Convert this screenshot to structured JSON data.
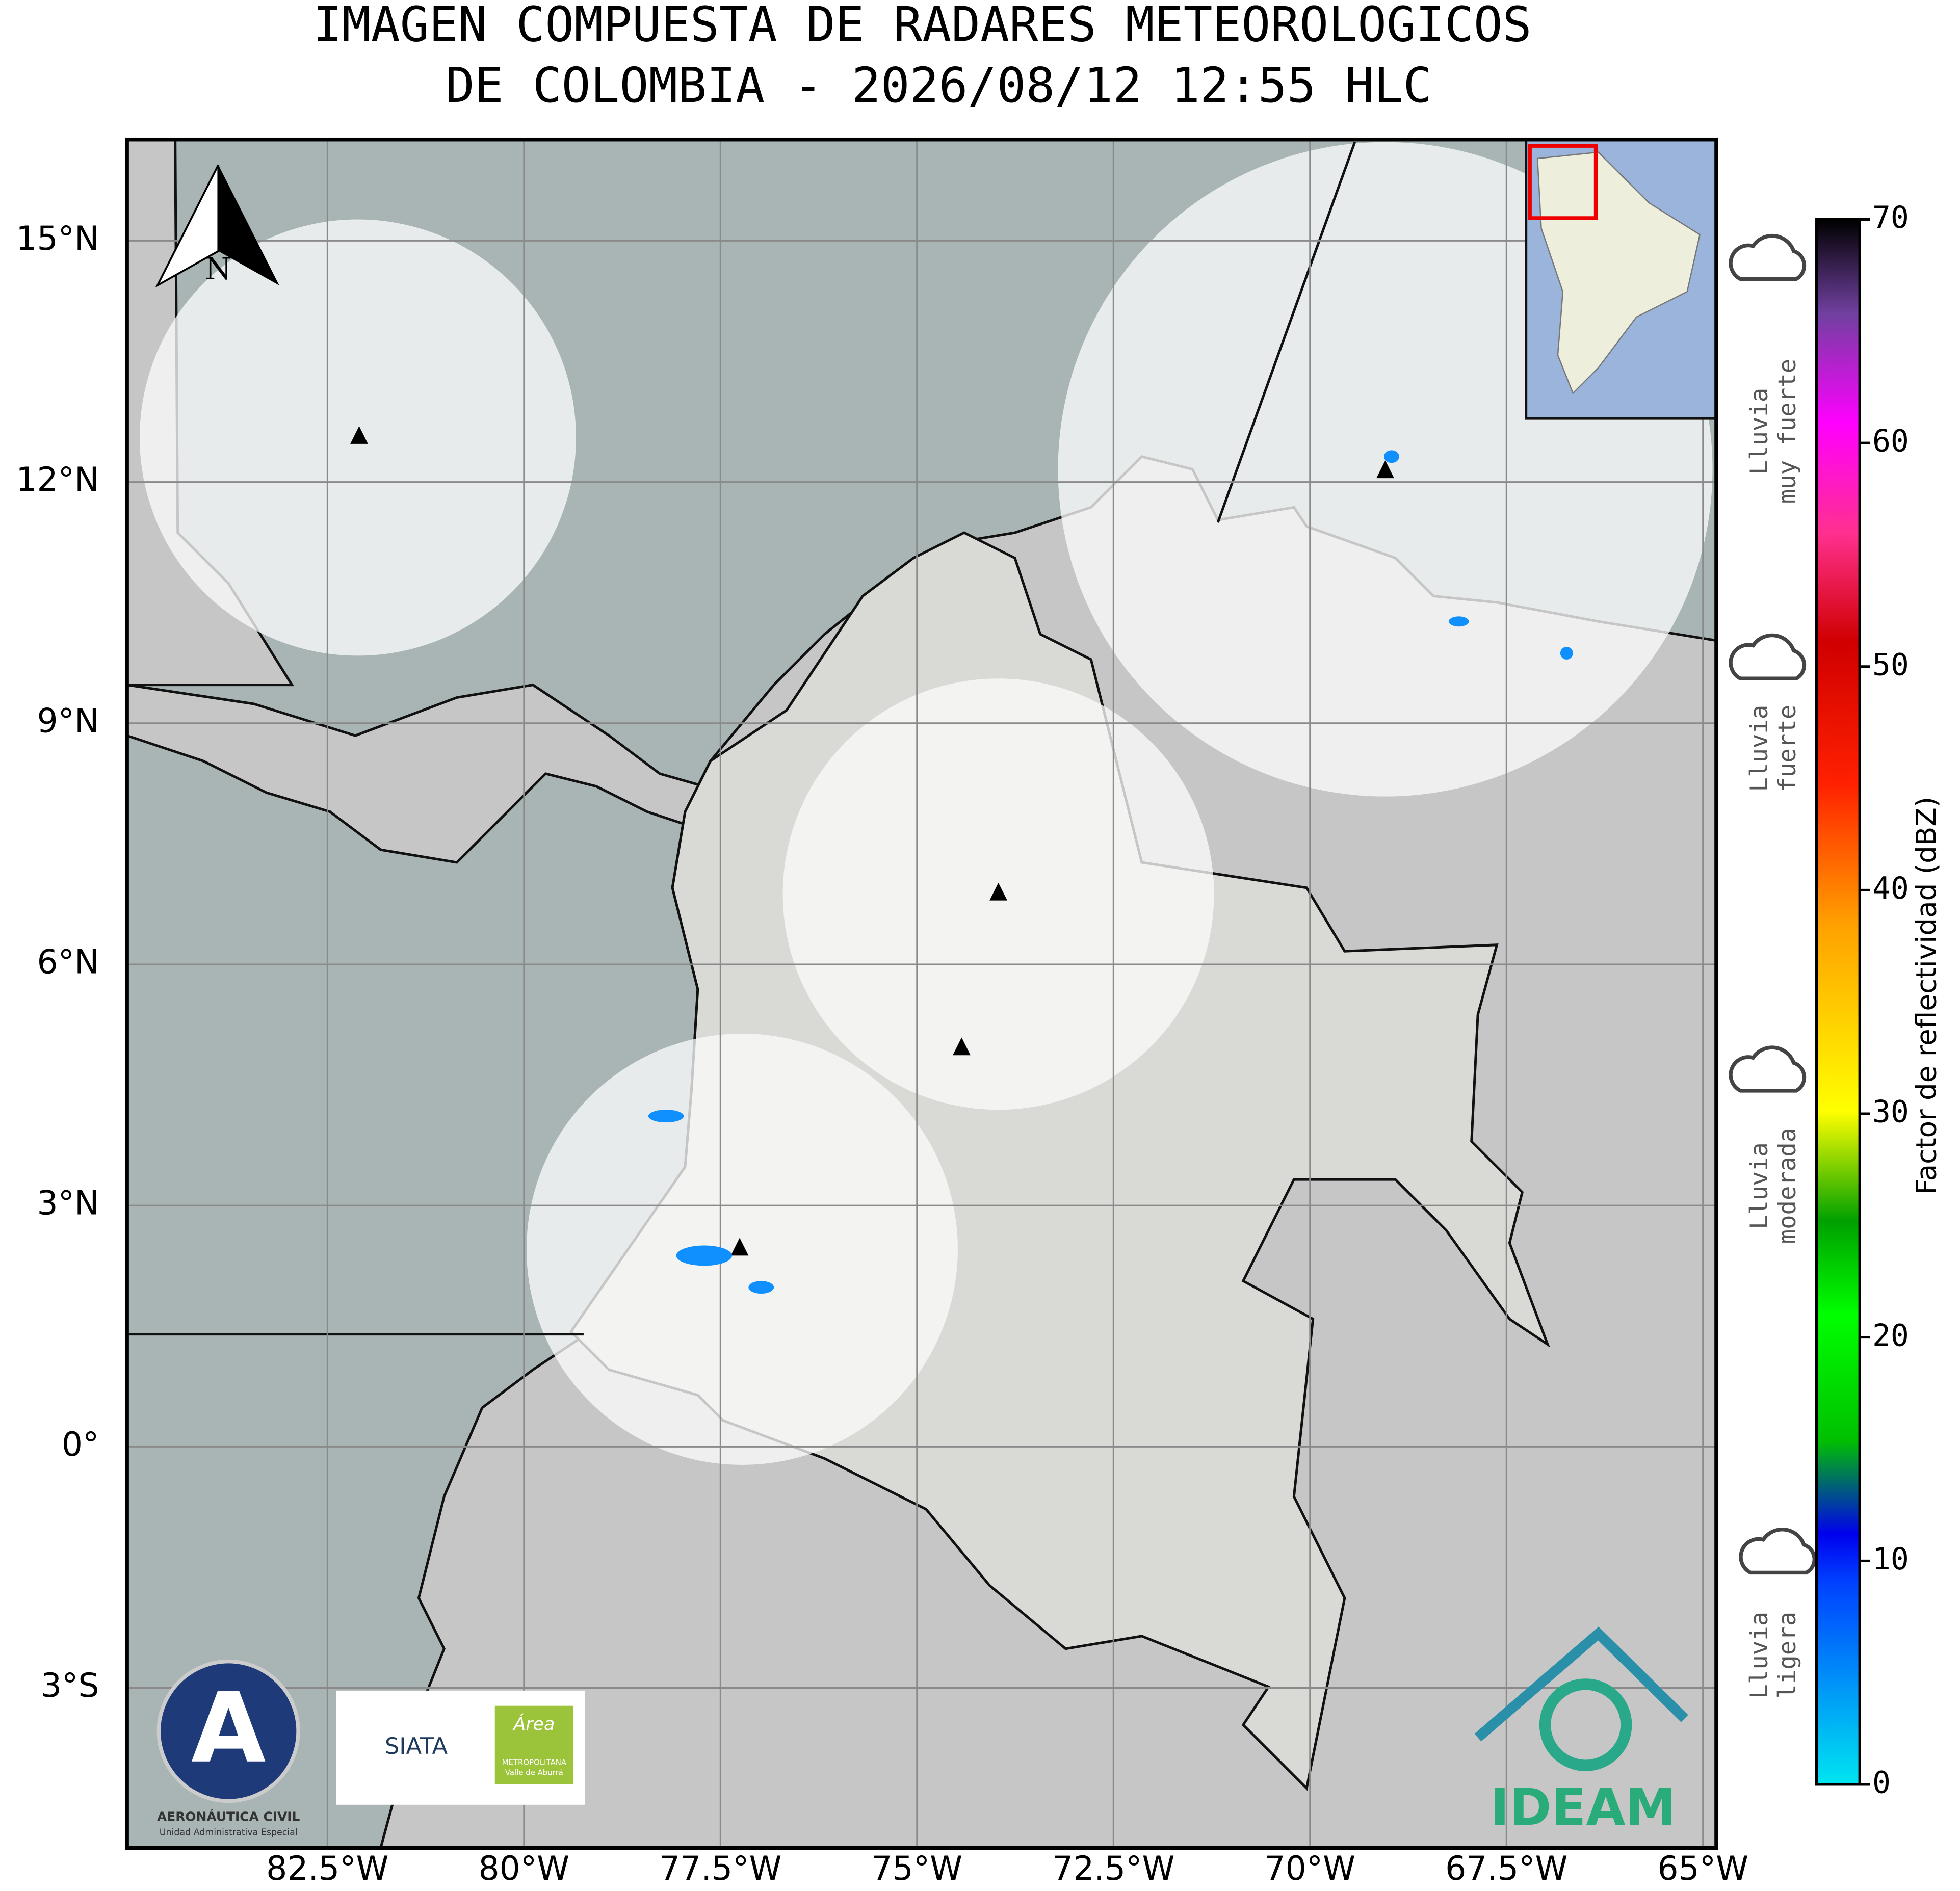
{
  "title": [
    "IMAGEN COMPUESTA DE RADARES METEOROLOGICOS",
    "DE COLOMBIA - 2026/08/12 12:55 HLC"
  ],
  "map": {
    "xlim": [
      -85.05,
      -64.83
    ],
    "ylim": [
      -4.99,
      16.26
    ],
    "grid": true,
    "north_label": "N",
    "xticks": [
      {
        "value": -82.5,
        "label": "82.5°W"
      },
      {
        "value": -80,
        "label": "80°W"
      },
      {
        "value": -77.5,
        "label": "77.5°W"
      },
      {
        "value": -75,
        "label": "75°W"
      },
      {
        "value": -72.5,
        "label": "72.5°W"
      },
      {
        "value": -70,
        "label": "70°W"
      },
      {
        "value": -67.5,
        "label": "67.5°W"
      },
      {
        "value": -65,
        "label": "65°W"
      }
    ],
    "yticks": [
      {
        "value": 15,
        "label": "15°N"
      },
      {
        "value": 12,
        "label": "12°N"
      },
      {
        "value": 9,
        "label": "9°N"
      },
      {
        "value": 6,
        "label": "6°N"
      },
      {
        "value": 3,
        "label": "3°N"
      },
      {
        "value": 0,
        "label": "0°"
      },
      {
        "value": -3,
        "label": "3°S"
      }
    ]
  },
  "colorbar": {
    "label": "Factor de reflectividad (dBZ)",
    "lim": [
      0,
      70
    ],
    "ticks": [
      0,
      10,
      20,
      30,
      40,
      50,
      60,
      70
    ]
  },
  "rain_categories": [
    [
      "Lluvia",
      "muy fuerte"
    ],
    [
      "Lluvia",
      "fuerte"
    ],
    [
      "Lluvia",
      "moderada"
    ],
    [
      "Lluvia",
      "ligera"
    ]
  ],
  "logos": {
    "aerocivil": [
      "AERONÁUTICA CIVIL",
      "Unidad Administrativa Especial"
    ],
    "siata": "SIATA",
    "area": [
      "Área",
      "METROPOLITANA",
      "Valle de Aburrá"
    ],
    "ideam": "IDEAM"
  }
}
